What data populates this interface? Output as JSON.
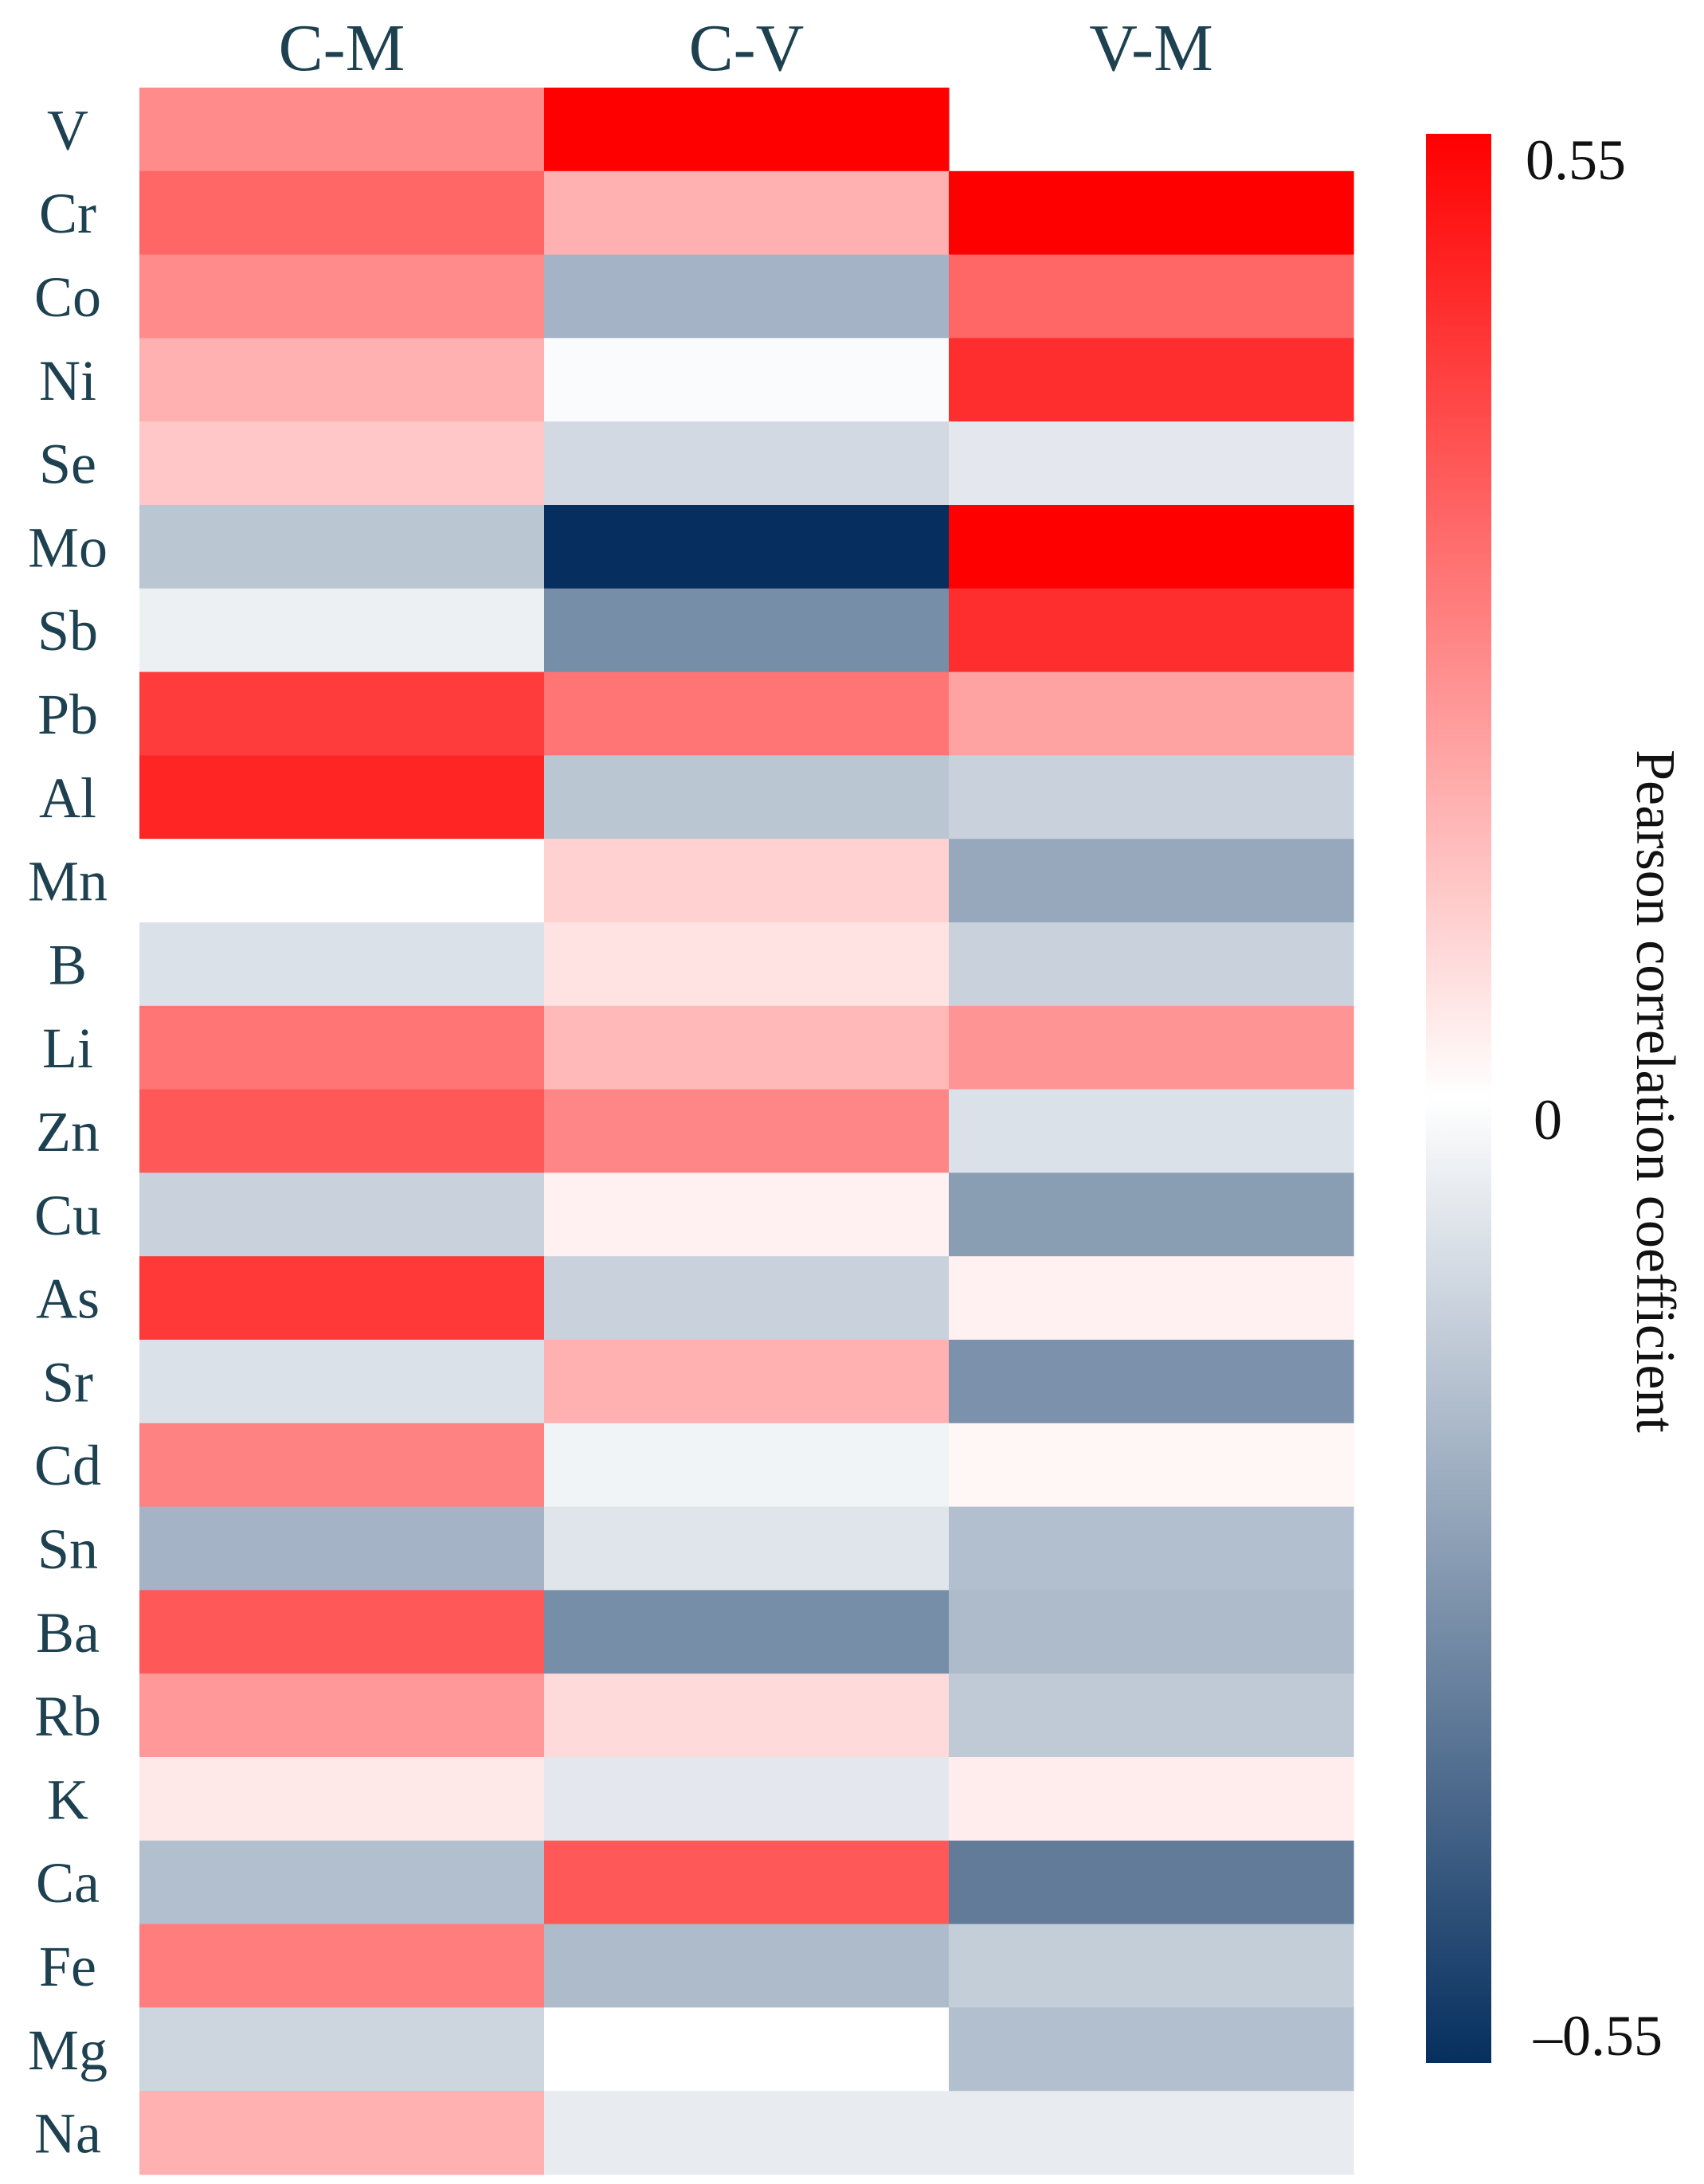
{
  "chart_data": {
    "type": "heatmap",
    "title": "",
    "columns": [
      "C-M",
      "C-V",
      "V-M"
    ],
    "rows": [
      "V",
      "Cr",
      "Co",
      "Ni",
      "Se",
      "Mo",
      "Sb",
      "Pb",
      "Al",
      "Mn",
      "B",
      "Li",
      "Zn",
      "Cu",
      "As",
      "Sr",
      "Cd",
      "Sn",
      "Ba",
      "Rb",
      "K",
      "Ca",
      "Fe",
      "Mg",
      "Na"
    ],
    "values": [
      [
        0.25,
        0.55,
        null
      ],
      [
        0.33,
        0.17,
        0.55
      ],
      [
        0.25,
        -0.2,
        0.33
      ],
      [
        0.17,
        -0.01,
        0.45
      ],
      [
        0.12,
        -0.1,
        -0.06
      ],
      [
        -0.15,
        -0.55,
        0.55
      ],
      [
        -0.04,
        -0.3,
        0.45
      ],
      [
        0.42,
        0.3,
        0.2
      ],
      [
        0.47,
        -0.15,
        -0.12
      ],
      [
        0.0,
        0.1,
        -0.23
      ],
      [
        -0.08,
        0.06,
        -0.12
      ],
      [
        0.3,
        0.15,
        0.23
      ],
      [
        0.36,
        0.26,
        -0.08
      ],
      [
        -0.12,
        0.03,
        -0.26
      ],
      [
        0.43,
        -0.12,
        0.03
      ],
      [
        -0.08,
        0.17,
        -0.29
      ],
      [
        0.27,
        -0.03,
        0.02
      ],
      [
        -0.2,
        -0.07,
        -0.17
      ],
      [
        0.36,
        -0.3,
        -0.18
      ],
      [
        0.22,
        0.08,
        -0.14
      ],
      [
        0.05,
        -0.06,
        0.04
      ],
      [
        -0.17,
        0.36,
        -0.35
      ],
      [
        0.28,
        -0.18,
        -0.13
      ],
      [
        -0.11,
        0.0,
        -0.17
      ],
      [
        0.17,
        -0.05,
        -0.05
      ]
    ],
    "colorbar": {
      "label": "Pearson correlation coefficient",
      "min": -0.55,
      "max": 0.55,
      "tick_labels": [
        "0.55",
        "0",
        "–0.55"
      ],
      "low_color": "#062f5f",
      "mid_color": "#ffffff",
      "high_color": "#ff0000"
    }
  }
}
